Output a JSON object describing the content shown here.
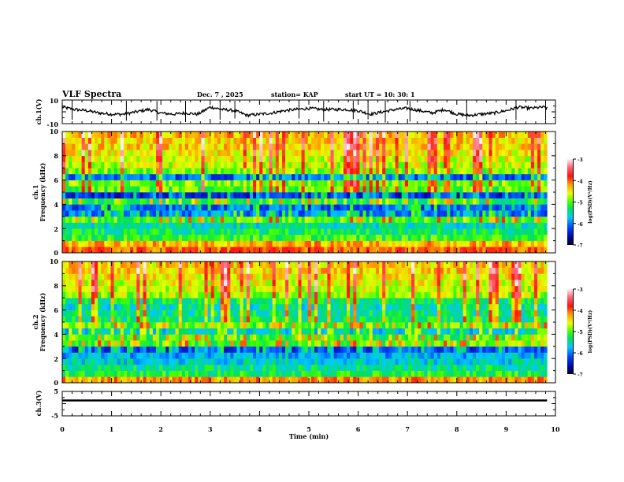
{
  "header": {
    "title": "VLF Spectra",
    "date": "Dec. 7  , 2025",
    "station": "station= KAP",
    "start_ut": "start  UT  =   10: 30: 1"
  },
  "chart_data": [
    {
      "type": "line",
      "name": "ch1-waveform",
      "ylabel": "ch.1(V)",
      "ylim": [
        -10,
        10
      ],
      "yticks": [
        "10",
        "-10"
      ],
      "xlim": [
        0,
        10
      ],
      "data_end_min": 9.83,
      "x": [
        0,
        0.25,
        0.5,
        0.75,
        1,
        1.25,
        1.5,
        1.75,
        2,
        2.25,
        2.5,
        2.75,
        3,
        3.25,
        3.5,
        3.75,
        4,
        4.25,
        4.5,
        4.75,
        5,
        5.25,
        5.5,
        5.75,
        6,
        6.25,
        6.5,
        6.75,
        7,
        7.25,
        7.5,
        7.75,
        8,
        8.25,
        8.5,
        8.75,
        9,
        9.25,
        9.5,
        9.75,
        9.83
      ],
      "y": [
        4,
        2,
        1,
        -1,
        -2,
        -2,
        0,
        2,
        -1,
        -2,
        -1,
        -2,
        4,
        2,
        1,
        -3,
        -2,
        -1,
        1,
        2,
        3,
        2,
        2,
        2,
        1,
        -2,
        0,
        2,
        3,
        1,
        -1,
        2,
        -2,
        -3,
        -2,
        -1,
        1,
        4,
        3,
        4,
        3
      ]
    },
    {
      "type": "heatmap",
      "name": "ch1-spectrogram",
      "channel_label": "ch.1",
      "ylabel": "Frequency  (kHz)",
      "ylim": [
        0,
        10
      ],
      "yticks": [
        "0",
        "2",
        "4",
        "6",
        "8",
        "10"
      ],
      "xlim": [
        0,
        10
      ],
      "data_end_min": 9.83,
      "freq_bands_khz": [
        0,
        0.5,
        1,
        1.5,
        2,
        2.5,
        3,
        3.5,
        4,
        4.5,
        5,
        5.5,
        6,
        6.5,
        7,
        7.5,
        8,
        8.5,
        9,
        9.5
      ],
      "mean_log_psd": [
        -4.0,
        -4.3,
        -5.1,
        -5.3,
        -5.5,
        -5.0,
        -6.0,
        -6.1,
        -5.2,
        -6.3,
        -5.0,
        -4.9,
        -6.1,
        -4.9,
        -4.7,
        -4.6,
        -4.5,
        -4.4,
        -4.4,
        -4.3
      ]
    },
    {
      "type": "heatmap",
      "name": "ch2-spectrogram",
      "channel_label": "ch.2",
      "ylabel": "Frequency  (kHz)",
      "ylim": [
        0,
        10
      ],
      "yticks": [
        "0",
        "2",
        "4",
        "6",
        "8",
        "10"
      ],
      "xlim": [
        0,
        10
      ],
      "data_end_min": 9.83,
      "freq_bands_khz": [
        0,
        0.5,
        1,
        1.5,
        2,
        2.5,
        3,
        3.5,
        4,
        4.5,
        5,
        5.5,
        6,
        6.5,
        7,
        7.5,
        8,
        8.5,
        9,
        9.5
      ],
      "mean_log_psd": [
        -4.2,
        -5.2,
        -5.4,
        -5.6,
        -5.8,
        -6.2,
        -5.0,
        -5.1,
        -5.6,
        -5.0,
        -5.3,
        -5.4,
        -5.5,
        -5.3,
        -4.8,
        -4.7,
        -4.6,
        -4.5,
        -4.4,
        -4.4
      ]
    },
    {
      "type": "line",
      "name": "ch3-waveform",
      "ylabel": "ch.3(V)",
      "ylim": [
        -5,
        5
      ],
      "yticks": [
        "5",
        "0",
        "-5"
      ],
      "xlim": [
        0,
        10
      ],
      "data_end_min": 9.83,
      "x": [
        0,
        9.83
      ],
      "y": [
        1.3,
        1.3
      ],
      "band_halfwidth": 0.4,
      "xlabel": "Time  (min)",
      "xticks": [
        "0",
        "1",
        "2",
        "3",
        "4",
        "5",
        "6",
        "7",
        "8",
        "9",
        "10"
      ]
    }
  ],
  "colorbars": [
    {
      "name": "colorbar-ch1",
      "label": "log(PSD)(V²/Hz)",
      "range": [
        -7,
        -3
      ],
      "ticks": [
        "-3",
        "-4",
        "-5",
        "-6",
        "-7"
      ]
    },
    {
      "name": "colorbar-ch2",
      "label": "log(PSD)(V²/Hz)",
      "range": [
        -7,
        -3
      ],
      "ticks": [
        "-3",
        "-4",
        "-5",
        "-6",
        "-7"
      ]
    }
  ]
}
